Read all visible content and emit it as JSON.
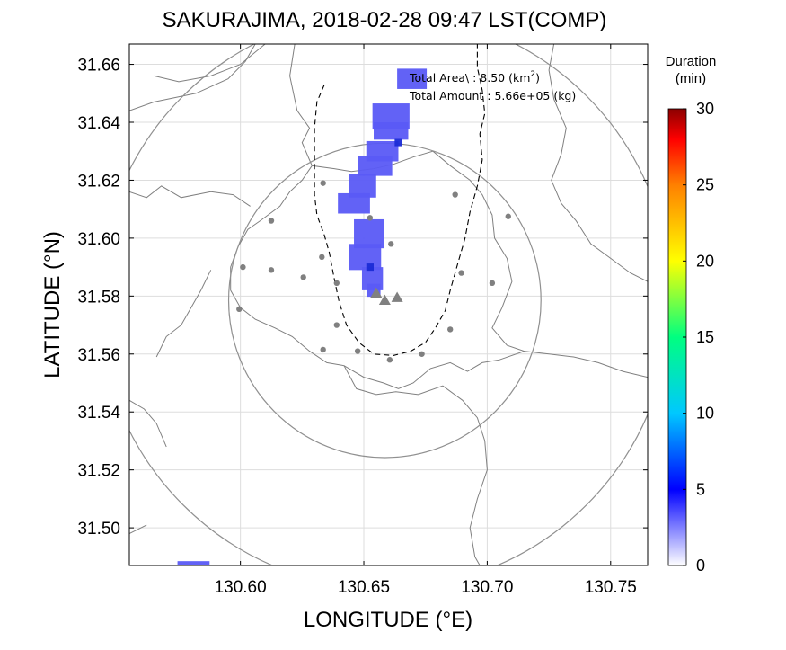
{
  "title": "SAKURAJIMA, 2018-02-28 09:47 LST(COMP)",
  "xlabel": "LONGITUDE (°E)",
  "ylabel": "LATITUDE (°N)",
  "annotation": {
    "area_prefix": "Total Area\\ : 8.50 (km",
    "area_sup": "2",
    "area_suffix": ")",
    "amount": "Total Amount : 5.66e+05 (kg)"
  },
  "colorbar": {
    "title_line1": "Duration",
    "title_line2": "(min)",
    "range": [
      0,
      30
    ],
    "ticks": [
      {
        "value": 0,
        "label": "0"
      },
      {
        "value": 5,
        "label": "5"
      },
      {
        "value": 10,
        "label": "10"
      },
      {
        "value": 15,
        "label": "15"
      },
      {
        "value": 20,
        "label": "20"
      },
      {
        "value": 25,
        "label": "25"
      },
      {
        "value": 30,
        "label": "30"
      }
    ],
    "colors": [
      "#ffffff",
      "#0000ff",
      "#00c8ff",
      "#00ff80",
      "#ffff00",
      "#ff8000",
      "#ff0000",
      "#8b0000"
    ]
  },
  "chart_data": {
    "type": "heatmap",
    "title": "SAKURAJIMA, 2018-02-28 09:47 LST(COMP)",
    "xlabel": "LONGITUDE (°E)",
    "ylabel": "LATITUDE (°N)",
    "xlim": [
      130.555,
      130.765
    ],
    "ylim": [
      31.487,
      31.667
    ],
    "grid": true,
    "xticks": [
      {
        "value": 130.6,
        "label": "130.60"
      },
      {
        "value": 130.65,
        "label": "130.65"
      },
      {
        "value": 130.7,
        "label": "130.70"
      },
      {
        "value": 130.75,
        "label": "130.75"
      }
    ],
    "yticks": [
      {
        "value": 31.5,
        "label": "31.50"
      },
      {
        "value": 31.52,
        "label": "31.52"
      },
      {
        "value": 31.54,
        "label": "31.54"
      },
      {
        "value": 31.56,
        "label": "31.56"
      },
      {
        "value": 31.58,
        "label": "31.58"
      },
      {
        "value": 31.6,
        "label": "31.60"
      },
      {
        "value": 31.62,
        "label": "31.62"
      },
      {
        "value": 31.64,
        "label": "31.64"
      },
      {
        "value": 31.66,
        "label": "31.66"
      }
    ],
    "total_area_km2": 8.5,
    "total_amount_kg": 566000,
    "vents": [
      {
        "lon": 130.6585,
        "lat": 31.5785
      },
      {
        "lon": 130.6635,
        "lat": 31.5795
      },
      {
        "lon": 130.655,
        "lat": 31.581
      }
    ],
    "stations": [
      {
        "lon": 130.6335,
        "lat": 31.619
      },
      {
        "lon": 130.687,
        "lat": 31.615
      },
      {
        "lon": 130.6125,
        "lat": 31.606
      },
      {
        "lon": 130.6525,
        "lat": 31.607
      },
      {
        "lon": 130.7085,
        "lat": 31.6075
      },
      {
        "lon": 130.661,
        "lat": 31.598
      },
      {
        "lon": 130.601,
        "lat": 31.59
      },
      {
        "lon": 130.6125,
        "lat": 31.589
      },
      {
        "lon": 130.633,
        "lat": 31.5935
      },
      {
        "lon": 130.6895,
        "lat": 31.588
      },
      {
        "lon": 130.6255,
        "lat": 31.5865
      },
      {
        "lon": 130.639,
        "lat": 31.5845
      },
      {
        "lon": 130.702,
        "lat": 31.5845
      },
      {
        "lon": 130.5995,
        "lat": 31.5755
      },
      {
        "lon": 130.639,
        "lat": 31.57
      },
      {
        "lon": 130.685,
        "lat": 31.5685
      },
      {
        "lon": 130.6335,
        "lat": 31.5615
      },
      {
        "lon": 130.6475,
        "lat": 31.561
      },
      {
        "lon": 130.6605,
        "lat": 31.558
      },
      {
        "lon": 130.6735,
        "lat": 31.56
      }
    ],
    "range_circles": [
      {
        "center": [
          130.6585,
          31.5785
        ],
        "radius_km": 6
      },
      {
        "center": [
          130.6585,
          31.5785
        ],
        "radius_km": 11
      }
    ],
    "ash_cells": [
      {
        "lon": 130.6695,
        "lat": 31.655,
        "w": 0.012,
        "h": 0.007,
        "min": 3
      },
      {
        "lon": 130.661,
        "lat": 31.642,
        "w": 0.015,
        "h": 0.009,
        "min": 3
      },
      {
        "lon": 130.661,
        "lat": 31.637,
        "w": 0.014,
        "h": 0.006,
        "min": 3
      },
      {
        "lon": 130.6575,
        "lat": 31.63,
        "w": 0.013,
        "h": 0.007,
        "min": 3
      },
      {
        "lon": 130.6545,
        "lat": 31.625,
        "w": 0.014,
        "h": 0.007,
        "min": 3
      },
      {
        "lon": 130.6495,
        "lat": 31.618,
        "w": 0.011,
        "h": 0.008,
        "min": 3
      },
      {
        "lon": 130.646,
        "lat": 31.612,
        "w": 0.013,
        "h": 0.007,
        "min": 3
      },
      {
        "lon": 130.652,
        "lat": 31.6015,
        "w": 0.012,
        "h": 0.01,
        "min": 3
      },
      {
        "lon": 130.6505,
        "lat": 31.5935,
        "w": 0.013,
        "h": 0.009,
        "min": 3
      },
      {
        "lon": 130.6535,
        "lat": 31.586,
        "w": 0.0085,
        "h": 0.008,
        "min": 3
      },
      {
        "lon": 130.654,
        "lat": 31.582,
        "w": 0.0055,
        "h": 0.0045,
        "min": 3
      },
      {
        "lon": 130.664,
        "lat": 31.633,
        "w": 0.003,
        "h": 0.0025,
        "min": 6
      },
      {
        "lon": 130.6525,
        "lat": 31.59,
        "w": 0.003,
        "h": 0.0025,
        "min": 6
      },
      {
        "lon": 130.581,
        "lat": 31.4875,
        "w": 0.013,
        "h": 0.002,
        "min": 3
      }
    ],
    "coastline": [
      [
        [
          130.555,
          31.644
        ],
        [
          130.565,
          31.647
        ],
        [
          130.582,
          31.65
        ],
        [
          130.595,
          31.655
        ],
        [
          130.602,
          31.661
        ],
        [
          130.606,
          31.667
        ]
      ],
      [
        [
          130.61,
          31.667
        ],
        [
          130.6,
          31.66
        ],
        [
          130.588,
          31.656
        ],
        [
          130.575,
          31.654
        ],
        [
          130.565,
          31.656
        ]
      ],
      [
        [
          130.555,
          31.616
        ],
        [
          130.562,
          31.614
        ],
        [
          130.568,
          31.618
        ],
        [
          130.576,
          31.614
        ],
        [
          130.588,
          31.616
        ],
        [
          130.597,
          31.615
        ],
        [
          130.604,
          31.611
        ]
      ],
      [
        [
          130.622,
          31.667
        ],
        [
          130.62,
          31.656
        ],
        [
          130.623,
          31.644
        ],
        [
          130.628,
          31.638
        ],
        [
          130.625,
          31.633
        ],
        [
          130.629,
          31.625
        ],
        [
          130.638,
          31.624
        ],
        [
          130.645,
          31.623
        ],
        [
          130.654,
          31.624
        ],
        [
          130.662,
          31.6255
        ],
        [
          130.67,
          31.628
        ],
        [
          130.678,
          31.63
        ],
        [
          130.685,
          31.625
        ],
        [
          130.693,
          31.62
        ],
        [
          130.698,
          31.615
        ],
        [
          130.702,
          31.608
        ],
        [
          130.703,
          31.6
        ],
        [
          130.708,
          31.593
        ],
        [
          130.71,
          31.585
        ],
        [
          130.706,
          31.576
        ],
        [
          130.702,
          31.569
        ],
        [
          130.708,
          31.563
        ],
        [
          130.715,
          31.561
        ],
        [
          130.705,
          31.558
        ],
        [
          130.698,
          31.557
        ],
        [
          130.692,
          31.554
        ],
        [
          130.685,
          31.557
        ],
        [
          130.677,
          31.555
        ],
        [
          130.67,
          31.55
        ],
        [
          130.664,
          31.548
        ],
        [
          130.658,
          31.55
        ],
        [
          130.65,
          31.552
        ],
        [
          130.642,
          31.556
        ],
        [
          130.635,
          31.557
        ],
        [
          130.628,
          31.561
        ],
        [
          130.621,
          31.566
        ],
        [
          130.614,
          31.569
        ],
        [
          130.606,
          31.572
        ],
        [
          130.6,
          31.576
        ],
        [
          130.596,
          31.582
        ],
        [
          130.596,
          31.59
        ],
        [
          130.599,
          31.597
        ],
        [
          130.603,
          31.603
        ],
        [
          130.608,
          31.606
        ],
        [
          130.616,
          31.611
        ],
        [
          130.62,
          31.616
        ],
        [
          130.625,
          31.62
        ],
        [
          130.629,
          31.625
        ]
      ],
      [
        [
          130.588,
          31.589
        ],
        [
          130.584,
          31.582
        ],
        [
          130.58,
          31.576
        ],
        [
          130.576,
          31.57
        ],
        [
          130.57,
          31.566
        ],
        [
          130.566,
          31.559
        ]
      ],
      [
        [
          130.642,
          31.556
        ],
        [
          130.647,
          31.548
        ],
        [
          130.655,
          31.546
        ],
        [
          130.663,
          31.547
        ],
        [
          130.672,
          31.546
        ],
        [
          130.682,
          31.549
        ],
        [
          130.69,
          31.544
        ],
        [
          130.696,
          31.538
        ],
        [
          130.699,
          31.53
        ],
        [
          130.7,
          31.52
        ],
        [
          130.696,
          31.51
        ],
        [
          130.693,
          31.5
        ],
        [
          130.695,
          31.49
        ],
        [
          130.697,
          31.487
        ]
      ],
      [
        [
          130.715,
          31.561
        ],
        [
          130.725,
          31.56
        ],
        [
          130.735,
          31.559
        ],
        [
          130.745,
          31.557
        ],
        [
          130.755,
          31.554
        ],
        [
          130.765,
          31.552
        ]
      ],
      [
        [
          130.727,
          31.667
        ],
        [
          130.725,
          31.658
        ],
        [
          130.727,
          31.648
        ],
        [
          130.732,
          31.638
        ],
        [
          130.73,
          31.629
        ],
        [
          130.726,
          31.62
        ],
        [
          130.73,
          31.612
        ],
        [
          130.736,
          31.606
        ],
        [
          130.742,
          31.598
        ],
        [
          130.75,
          31.593
        ],
        [
          130.758,
          31.588
        ],
        [
          130.765,
          31.585
        ]
      ],
      [
        [
          130.555,
          31.544
        ],
        [
          130.561,
          31.541
        ],
        [
          130.566,
          31.536
        ],
        [
          130.57,
          31.528
        ]
      ],
      [
        [
          130.555,
          31.498
        ],
        [
          130.562,
          31.501
        ]
      ]
    ],
    "boundary_dashed": [
      [
        130.634,
        31.653
      ],
      [
        130.631,
        31.647
      ],
      [
        130.63,
        31.638
      ],
      [
        130.63,
        31.627
      ],
      [
        130.63,
        31.615
      ],
      [
        130.631,
        31.608
      ],
      [
        130.634,
        31.601
      ],
      [
        130.636,
        31.595
      ],
      [
        130.638,
        31.586
      ],
      [
        130.64,
        31.578
      ],
      [
        130.643,
        31.57
      ],
      [
        130.648,
        31.564
      ],
      [
        130.654,
        31.56
      ],
      [
        130.662,
        31.5595
      ],
      [
        130.669,
        31.561
      ],
      [
        130.675,
        31.564
      ],
      [
        130.679,
        31.569
      ],
      [
        130.683,
        31.575
      ],
      [
        130.685,
        31.582
      ],
      [
        130.688,
        31.591
      ],
      [
        130.691,
        31.6
      ],
      [
        130.693,
        31.609
      ],
      [
        130.696,
        31.618
      ],
      [
        130.698,
        31.627
      ],
      [
        130.697,
        31.636
      ],
      [
        130.699,
        31.643
      ],
      [
        130.698,
        31.651
      ],
      [
        130.696,
        31.659
      ],
      [
        130.696,
        31.667
      ]
    ]
  }
}
